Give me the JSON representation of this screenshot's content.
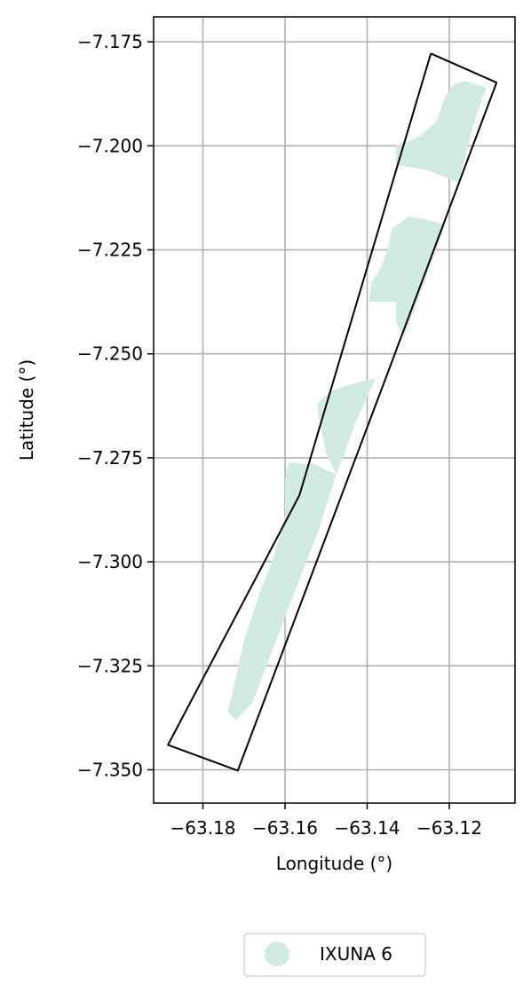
{
  "chart_data": {
    "type": "map",
    "xlabel": "Longitude (°)",
    "ylabel": "Latitude (°)",
    "xlim": [
      -63.192,
      -63.104
    ],
    "ylim": [
      -7.358,
      -7.169
    ],
    "x_ticks": [
      -63.18,
      -63.16,
      -63.14,
      -63.12
    ],
    "x_tick_labels": [
      "−63.18",
      "−63.16",
      "−63.14",
      "−63.12"
    ],
    "y_ticks": [
      -7.175,
      -7.2,
      -7.225,
      -7.25,
      -7.275,
      -7.3,
      -7.325,
      -7.35
    ],
    "y_tick_labels": [
      "−7.175",
      "−7.200",
      "−7.225",
      "−7.250",
      "−7.275",
      "−7.300",
      "−7.325",
      "−7.350"
    ],
    "grid": true,
    "boundary": {
      "color": "#000000",
      "points": [
        [
          -63.1245,
          -7.1778
        ],
        [
          -63.1085,
          -7.1848
        ],
        [
          -63.1325,
          -7.248
        ],
        [
          -63.134,
          -7.252
        ],
        [
          -63.1715,
          -7.3502
        ],
        [
          -63.1885,
          -7.344
        ],
        [
          -63.1565,
          -7.284
        ],
        [
          -63.1245,
          -7.1778
        ]
      ]
    },
    "series": [
      {
        "name": "IXUNA 6",
        "color": "#d0ebdf",
        "polygons": [
          [
            [
              -63.1185,
              -7.185
            ],
            [
              -63.116,
              -7.1845
            ],
            [
              -63.111,
              -7.186
            ],
            [
              -63.114,
              -7.1945
            ],
            [
              -63.1178,
              -7.2088
            ],
            [
              -63.125,
              -7.206
            ],
            [
              -63.133,
              -7.2045
            ],
            [
              -63.133,
              -7.2
            ],
            [
              -63.13,
              -7.199
            ],
            [
              -63.127,
              -7.1975
            ],
            [
              -63.123,
              -7.194
            ],
            [
              -63.121,
              -7.188
            ],
            [
              -63.1195,
              -7.186
            ]
          ],
          [
            [
              -63.1264,
              -7.2175
            ],
            [
              -63.121,
              -7.219
            ],
            [
              -63.1265,
              -7.234
            ],
            [
              -63.131,
              -7.246
            ],
            [
              -63.133,
              -7.2425
            ],
            [
              -63.133,
              -7.2375
            ],
            [
              -63.1395,
              -7.2375
            ],
            [
              -63.139,
              -7.233
            ],
            [
              -63.137,
              -7.23
            ],
            [
              -63.135,
              -7.225
            ],
            [
              -63.134,
              -7.22
            ],
            [
              -63.13,
              -7.217
            ]
          ],
          [
            [
              -63.1445,
              -7.2575
            ],
            [
              -63.141,
              -7.2565
            ],
            [
              -63.138,
              -7.256
            ],
            [
              -63.143,
              -7.267
            ],
            [
              -63.1475,
              -7.279
            ],
            [
              -63.15,
              -7.274
            ],
            [
              -63.151,
              -7.269
            ],
            [
              -63.152,
              -7.264
            ],
            [
              -63.152,
              -7.262
            ],
            [
              -63.149,
              -7.259
            ]
          ],
          [
            [
              -63.159,
              -7.276
            ],
            [
              -63.156,
              -7.2765
            ],
            [
              -63.153,
              -7.2765
            ],
            [
              -63.1475,
              -7.279
            ],
            [
              -63.152,
              -7.293
            ],
            [
              -63.156,
              -7.303
            ],
            [
              -63.168,
              -7.334
            ],
            [
              -63.172,
              -7.338
            ],
            [
              -63.174,
              -7.336
            ],
            [
              -63.172,
              -7.328
            ],
            [
              -63.17,
              -7.319
            ],
            [
              -63.168,
              -7.313
            ],
            [
              -63.166,
              -7.307
            ],
            [
              -63.164,
              -7.302
            ],
            [
              -63.1625,
              -7.298
            ],
            [
              -63.162,
              -7.296
            ],
            [
              -63.161,
              -7.293
            ],
            [
              -63.16,
              -7.289
            ],
            [
              -63.16,
              -7.284
            ],
            [
              -63.16,
              -7.28
            ]
          ]
        ]
      }
    ],
    "legend": {
      "position": "bottom-center",
      "entries": [
        {
          "label": "IXUNA 6",
          "color": "#d0ebdf",
          "marker": "circle"
        }
      ]
    }
  }
}
